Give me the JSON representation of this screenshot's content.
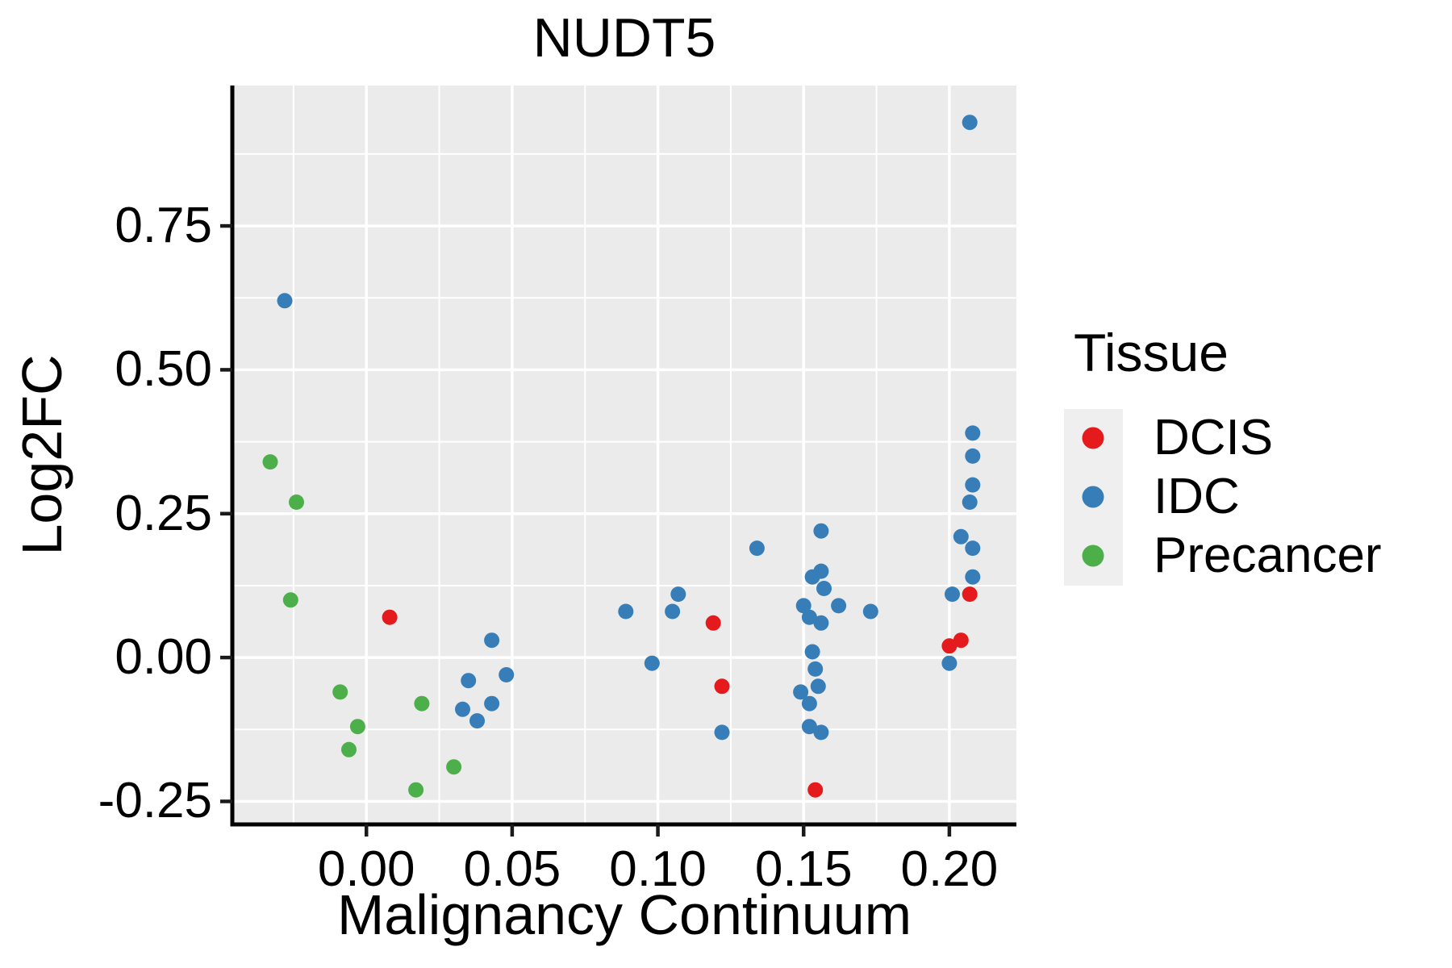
{
  "title": "NUDT5",
  "axes": {
    "x_label": "Malignancy Continuum",
    "y_label": "Log2FC",
    "x_tick_labels": [
      "0.00",
      "0.05",
      "0.10",
      "0.15",
      "0.20"
    ],
    "y_tick_labels": [
      "-0.25",
      "0.00",
      "0.25",
      "0.50",
      "0.75"
    ]
  },
  "legend": {
    "title": "Tissue",
    "entries": [
      {
        "label": "DCIS",
        "color": "#E41A1C"
      },
      {
        "label": "IDC",
        "color": "#377EB8"
      },
      {
        "label": "Precancer",
        "color": "#4DAF4A"
      }
    ]
  },
  "colors": {
    "panel_background": "#EBEBEB",
    "gridline": "#FFFFFF",
    "axis": "#000000",
    "dcis": "#E41A1C",
    "idc": "#377EB8",
    "precancer": "#4DAF4A"
  },
  "chart_data": {
    "type": "scatter",
    "title": "NUDT5",
    "xlabel": "Malignancy Continuum",
    "ylabel": "Log2FC",
    "xlim": [
      -0.046,
      0.223
    ],
    "ylim": [
      -0.29,
      0.994
    ],
    "x_major_ticks": [
      0.0,
      0.05,
      0.1,
      0.15,
      0.2
    ],
    "y_major_ticks": [
      -0.25,
      0.0,
      0.25,
      0.5,
      0.75
    ],
    "x_minor_ticks": [
      -0.025,
      0.025,
      0.075,
      0.125,
      0.175
    ],
    "y_minor_ticks": [
      -0.125,
      0.125,
      0.375,
      0.625,
      0.875
    ],
    "grid": "white major and minor gridlines on gray panel",
    "legend_position": "right",
    "series": [
      {
        "name": "IDC",
        "color": "#377EB8",
        "points": [
          [
            -0.028,
            0.62
          ],
          [
            0.043,
            0.03
          ],
          [
            0.035,
            -0.04
          ],
          [
            0.048,
            -0.03
          ],
          [
            0.033,
            -0.09
          ],
          [
            0.043,
            -0.08
          ],
          [
            0.038,
            -0.11
          ],
          [
            0.089,
            0.08
          ],
          [
            0.098,
            -0.01
          ],
          [
            0.105,
            0.08
          ],
          [
            0.107,
            0.11
          ],
          [
            0.122,
            -0.13
          ],
          [
            0.134,
            0.19
          ],
          [
            0.15,
            0.09
          ],
          [
            0.152,
            0.07
          ],
          [
            0.153,
            0.14
          ],
          [
            0.156,
            0.22
          ],
          [
            0.156,
            0.15
          ],
          [
            0.156,
            0.06
          ],
          [
            0.157,
            0.12
          ],
          [
            0.162,
            0.09
          ],
          [
            0.173,
            0.08
          ],
          [
            0.153,
            0.01
          ],
          [
            0.154,
            -0.02
          ],
          [
            0.149,
            -0.06
          ],
          [
            0.155,
            -0.05
          ],
          [
            0.152,
            -0.08
          ],
          [
            0.152,
            -0.12
          ],
          [
            0.156,
            -0.13
          ],
          [
            0.2,
            -0.01
          ],
          [
            0.201,
            0.11
          ],
          [
            0.204,
            0.21
          ],
          [
            0.207,
            0.27
          ],
          [
            0.207,
            0.93
          ],
          [
            0.208,
            0.39
          ],
          [
            0.208,
            0.35
          ],
          [
            0.208,
            0.3
          ],
          [
            0.208,
            0.19
          ],
          [
            0.208,
            0.14
          ]
        ]
      },
      {
        "name": "Precancer",
        "color": "#4DAF4A",
        "points": [
          [
            -0.033,
            0.34
          ],
          [
            -0.024,
            0.27
          ],
          [
            -0.026,
            0.1
          ],
          [
            -0.009,
            -0.06
          ],
          [
            -0.003,
            -0.12
          ],
          [
            -0.006,
            -0.16
          ],
          [
            0.019,
            -0.08
          ],
          [
            0.03,
            -0.19
          ],
          [
            0.017,
            -0.23
          ]
        ]
      },
      {
        "name": "DCIS",
        "color": "#E41A1C",
        "points": [
          [
            0.008,
            0.07
          ],
          [
            0.119,
            0.06
          ],
          [
            0.122,
            -0.05
          ],
          [
            0.154,
            -0.23
          ],
          [
            0.2,
            0.02
          ],
          [
            0.204,
            0.03
          ],
          [
            0.207,
            0.11
          ]
        ]
      }
    ]
  }
}
